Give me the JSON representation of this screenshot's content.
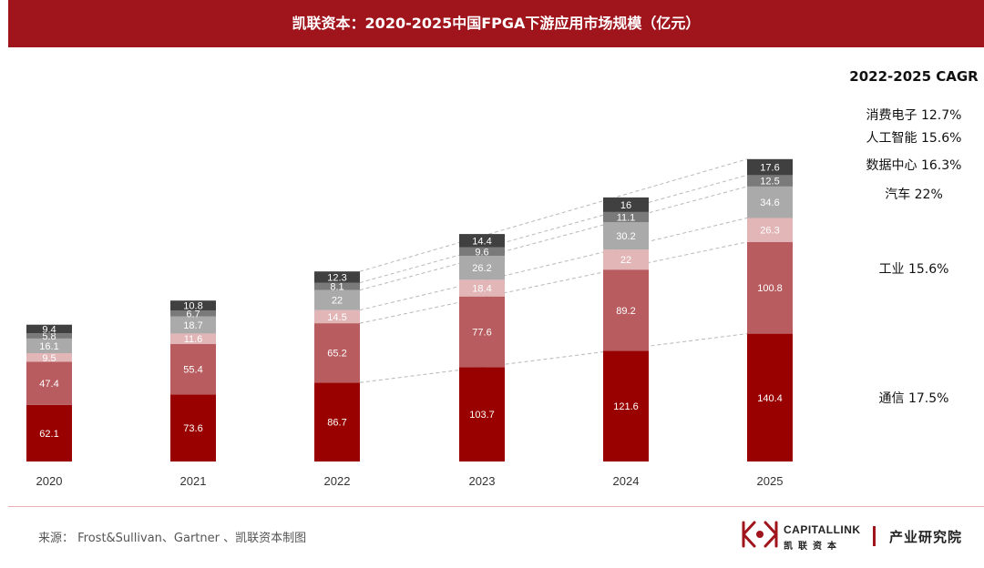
{
  "header": {
    "title": "凯联资本：2020-2025中国FPGA下游应用市场规模（亿元）"
  },
  "chart_data": {
    "type": "bar",
    "stacked": true,
    "title": "凯联资本：2020-2025中国FPGA下游应用市场规模（亿元）",
    "categories": [
      "2020",
      "2021",
      "2022",
      "2023",
      "2024",
      "2025"
    ],
    "series": [
      {
        "name": "通信",
        "cagr": "17.5%",
        "color": "#990000",
        "values": [
          62.1,
          73.6,
          86.7,
          103.7,
          121.6,
          140.4
        ]
      },
      {
        "name": "工业",
        "cagr": "15.6%",
        "color": "#b85c60",
        "values": [
          47.4,
          55.4,
          65.2,
          77.6,
          89.2,
          100.8
        ]
      },
      {
        "name": "汽车",
        "cagr": "22%",
        "color": "#e2b5b7",
        "values": [
          9.5,
          11.6,
          14.5,
          18.4,
          22,
          26.3
        ]
      },
      {
        "name": "数据中心",
        "cagr": "16.3%",
        "color": "#aaaaaa",
        "values": [
          16.1,
          18.7,
          22,
          26.2,
          30.2,
          34.6
        ]
      },
      {
        "name": "人工智能",
        "cagr": "15.6%",
        "color": "#7a7a7a",
        "values": [
          5.8,
          6.7,
          8.1,
          9.6,
          11.1,
          12.5
        ]
      },
      {
        "name": "消费电子",
        "cagr": "12.7%",
        "color": "#404040",
        "values": [
          9.4,
          10.8,
          12.3,
          14.4,
          16,
          17.6
        ]
      }
    ],
    "cagr_title": "2022-2025 CAGR",
    "legend_position": "right"
  },
  "cagr": {
    "title": "2022-2025 CAGR",
    "items": [
      {
        "label": "消费电子 12.7%"
      },
      {
        "label": "人工智能 15.6%"
      },
      {
        "label": "数据中心 16.3%"
      },
      {
        "label": "汽车 22%"
      },
      {
        "label": "工业 15.6%"
      },
      {
        "label": "通信 17.5%"
      }
    ]
  },
  "footer": {
    "source": "来源： Frost&Sullivan、Gartner 、凯联资本制图",
    "logo_en": "CAPITALLINK",
    "logo_cn": "凯联资本",
    "department": "产业研究院"
  },
  "colors": {
    "brand": "#a0141c"
  }
}
